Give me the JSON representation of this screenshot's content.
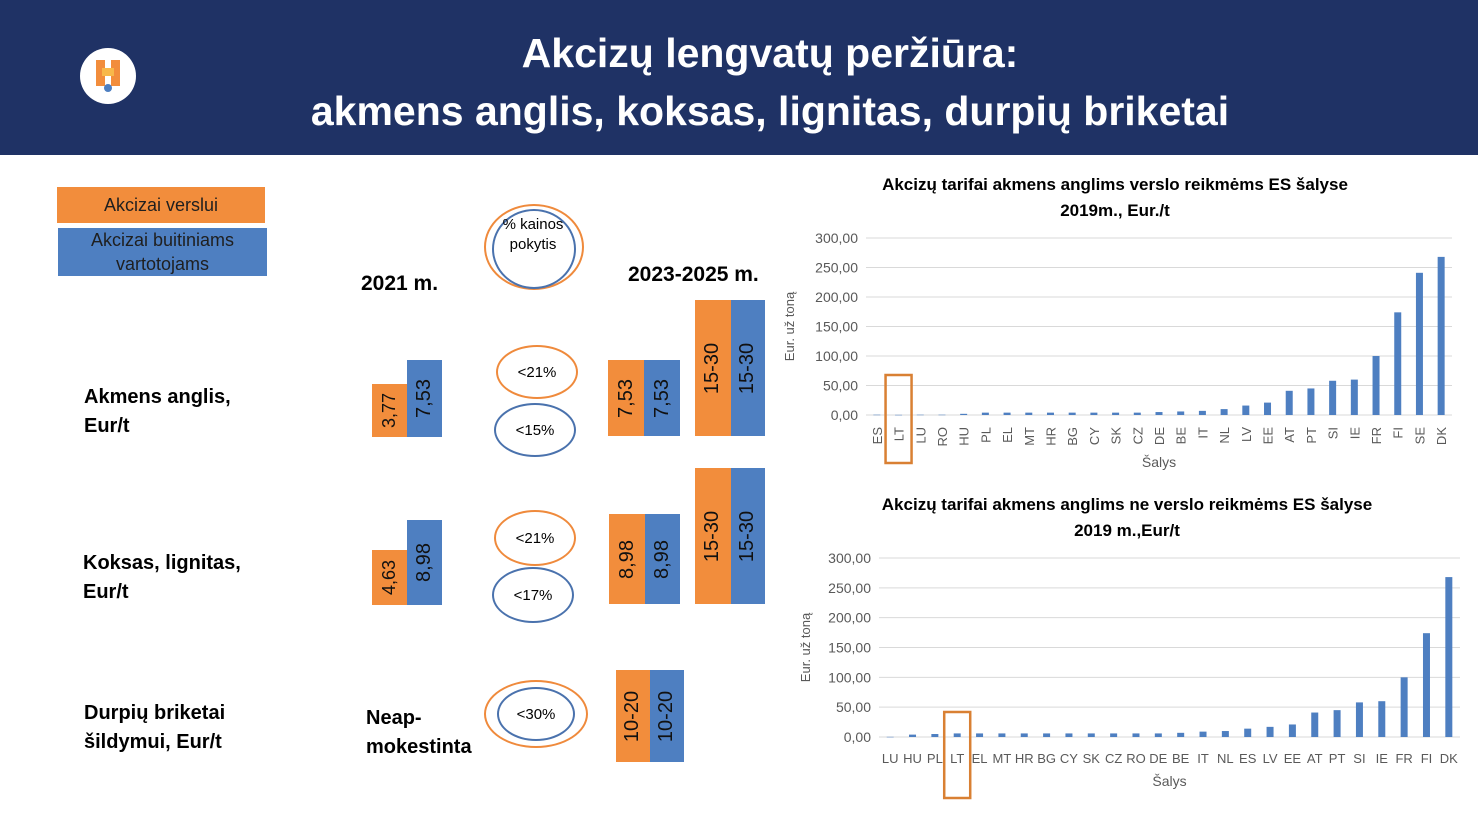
{
  "header": {
    "title_line1": "Akcizų lengvatų peržiūra:",
    "title_line2": "akmens anglis, koksas, lignitas, durpių briketai"
  },
  "legend": {
    "business": "Akcizai verslui",
    "household": "Akcizai buitiniams vartotojams"
  },
  "columns": {
    "year_2021": "2021 m.",
    "year_2023": "2023-2025 m.",
    "pct_label": "% kainos pokytis"
  },
  "rows": [
    {
      "label": "Akmens anglis, Eur/t",
      "v2021_business": "3,77",
      "v2021_household": "7,53",
      "pct_business": "<21%",
      "pct_household": "<15%",
      "n1_business": "7,53",
      "n1_household": "7,53",
      "n2_business": "15-30",
      "n2_household": "15-30"
    },
    {
      "label": "Koksas, lignitas, Eur/t",
      "v2021_business": "4,63",
      "v2021_household": "8,98",
      "pct_business": "<21%",
      "pct_household": "<17%",
      "n1_business": "8,98",
      "n1_household": "8,98",
      "n2_business": "15-30",
      "n2_household": "15-30"
    },
    {
      "label": "Durpių briketai šildymui, Eur/t",
      "v2021_text": "Neap-mokestinta",
      "pct": "<30%",
      "n_business": "10-20",
      "n_household": "10-20"
    }
  ],
  "chart_data": [
    {
      "type": "bar",
      "title": "Akcizų tarifai akmens anglims verslo reikmėms ES šalyse 2019m., Eur./t",
      "xlabel": "Šalys",
      "ylabel": "Eur. už toną",
      "ylim": [
        0,
        300
      ],
      "yticks": [
        "0,00",
        "50,00",
        "100,00",
        "150,00",
        "200,00",
        "250,00",
        "300,00"
      ],
      "highlight": "LT",
      "categories": [
        "ES",
        "LT",
        "LU",
        "RO",
        "HU",
        "PL",
        "EL",
        "MT",
        "HR",
        "BG",
        "CY",
        "SK",
        "CZ",
        "DE",
        "BE",
        "IT",
        "NL",
        "LV",
        "EE",
        "AT",
        "PT",
        "SI",
        "IE",
        "FR",
        "FI",
        "SE",
        "DK"
      ],
      "values": [
        0.5,
        0.3,
        0.5,
        0.5,
        2,
        4,
        4,
        4,
        4,
        4,
        4,
        4,
        4,
        5,
        6,
        7,
        10,
        16,
        21,
        41,
        45,
        58,
        60,
        100,
        174,
        241,
        268
      ],
      "color": "#4e7fc1"
    },
    {
      "type": "bar",
      "title": "Akcizų tarifai akmens anglims ne verslo reikmėms ES šalyse 2019 m.,Eur/t",
      "xlabel": "Šalys",
      "ylabel": "Eur. už toną",
      "ylim": [
        0,
        300
      ],
      "yticks": [
        "0,00",
        "50,00",
        "100,00",
        "150,00",
        "200,00",
        "250,00",
        "300,00"
      ],
      "highlight": "LT",
      "categories": [
        "LU",
        "HU",
        "PL",
        "LT",
        "EL",
        "MT",
        "HR",
        "BG",
        "CY",
        "SK",
        "CZ",
        "RO",
        "DE",
        "BE",
        "IT",
        "NL",
        "ES",
        "LV",
        "EE",
        "AT",
        "PT",
        "SI",
        "IE",
        "FR",
        "FI",
        "DK"
      ],
      "values": [
        0.3,
        4,
        5,
        6,
        6,
        6,
        6,
        6,
        6,
        6,
        6,
        6,
        6,
        7,
        9,
        10,
        14,
        17,
        21,
        41,
        45,
        58,
        60,
        100,
        174,
        268
      ],
      "color": "#4e7fc1"
    }
  ]
}
